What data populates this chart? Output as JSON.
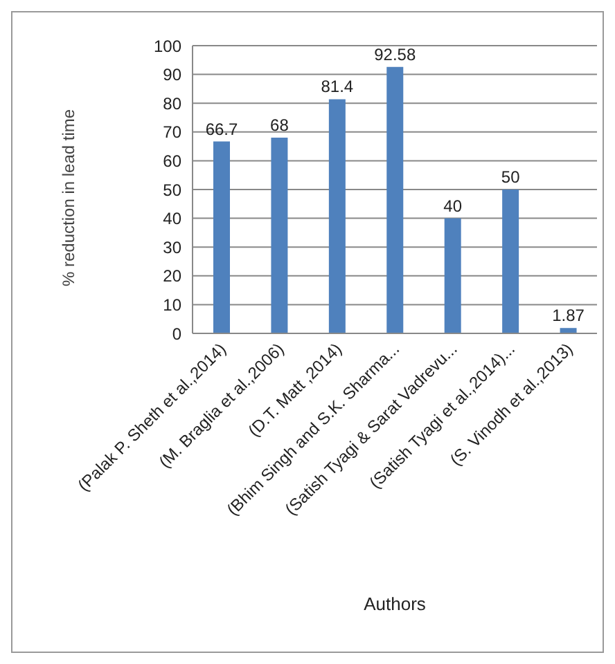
{
  "chart_data": {
    "type": "bar",
    "xlabel": "Authors",
    "ylabel": "% reduction in lead time",
    "categories": [
      "(Palak P. Sheth et al.,2014)",
      "(M. Braglia et al.,2006)",
      "(D.T. Matt ,2014)",
      "(Bhim Singh and S.K. Sharma...",
      "(Satish Tyagi & Sarat Vadrevu...",
      "(Satish Tyagi et al.,2014)...",
      "(S. Vinodh et al.,2013)"
    ],
    "values": [
      66.7,
      68,
      81.4,
      92.58,
      40,
      50,
      1.87
    ],
    "color": "#4f81bd",
    "ylim": [
      0,
      100
    ],
    "yticks": [
      0,
      10,
      20,
      30,
      40,
      50,
      60,
      70,
      80,
      90,
      100
    ],
    "grid": "y",
    "data_labels": true
  }
}
